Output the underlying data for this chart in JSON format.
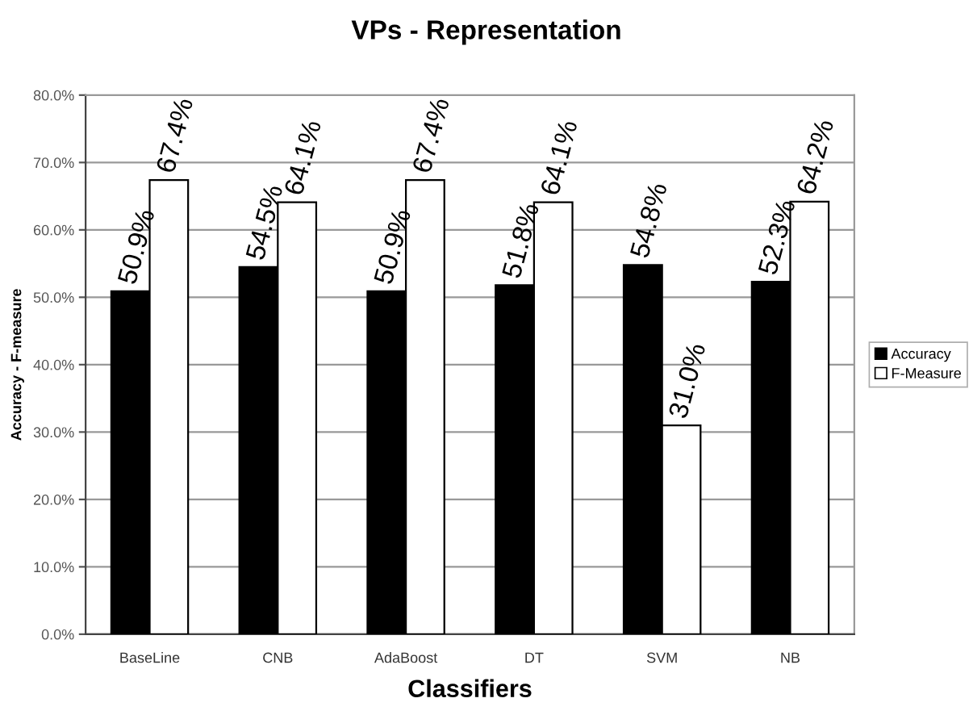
{
  "chart_data": {
    "type": "bar",
    "title": "VPs - Representation",
    "xlabel": "Classifiers",
    "ylabel": "Accuracy - F-measure",
    "categories": [
      "BaseLine",
      "CNB",
      "AdaBoost",
      "DT",
      "SVM",
      "NB"
    ],
    "series": [
      {
        "name": "Accuracy",
        "color": "#000000",
        "values": [
          50.9,
          54.5,
          50.9,
          51.8,
          54.8,
          52.3
        ],
        "value_labels": [
          "50.9%",
          "54.5%",
          "50.9%",
          "51.8%",
          "54.8%",
          "52.3%"
        ]
      },
      {
        "name": "F-Measure",
        "color": "#ffffff",
        "values": [
          67.4,
          64.1,
          67.4,
          64.1,
          31.0,
          64.2
        ],
        "value_labels": [
          "67.4%",
          "64.1%",
          "67.4%",
          "64.1%",
          "31.0%",
          "64.2%"
        ]
      }
    ],
    "ylim": [
      0,
      80
    ],
    "yticks": [
      {
        "value": 0,
        "label": "0.0%"
      },
      {
        "value": 10,
        "label": "10.0%"
      },
      {
        "value": 20,
        "label": "20.0%"
      },
      {
        "value": 30,
        "label": "30.0%"
      },
      {
        "value": 40,
        "label": "40.0%"
      },
      {
        "value": 50,
        "label": "50.0%"
      },
      {
        "value": 60,
        "label": "60.0%"
      },
      {
        "value": 70,
        "label": "70.0%"
      },
      {
        "value": 80,
        "label": "80.0%"
      }
    ],
    "grid": "y",
    "legend": "right"
  }
}
